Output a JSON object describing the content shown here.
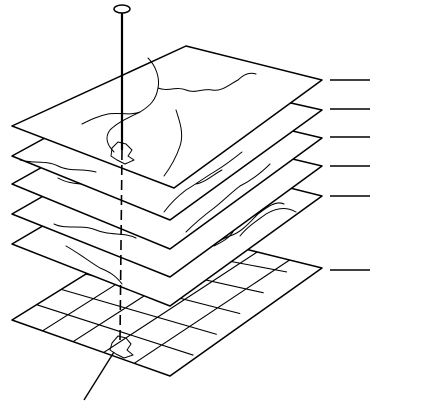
{
  "figure": {
    "layers": [
      {
        "id": "layer-1",
        "content": "boundaries"
      },
      {
        "id": "layer-2",
        "content": "coastline"
      },
      {
        "id": "layer-3",
        "content": "rivers"
      },
      {
        "id": "layer-4",
        "content": "rivers"
      },
      {
        "id": "layer-5",
        "content": "coastline"
      },
      {
        "id": "layer-6",
        "content": "grid"
      }
    ],
    "leader_lines": 6,
    "has_pin": true,
    "has_bottom_pointer": true
  }
}
